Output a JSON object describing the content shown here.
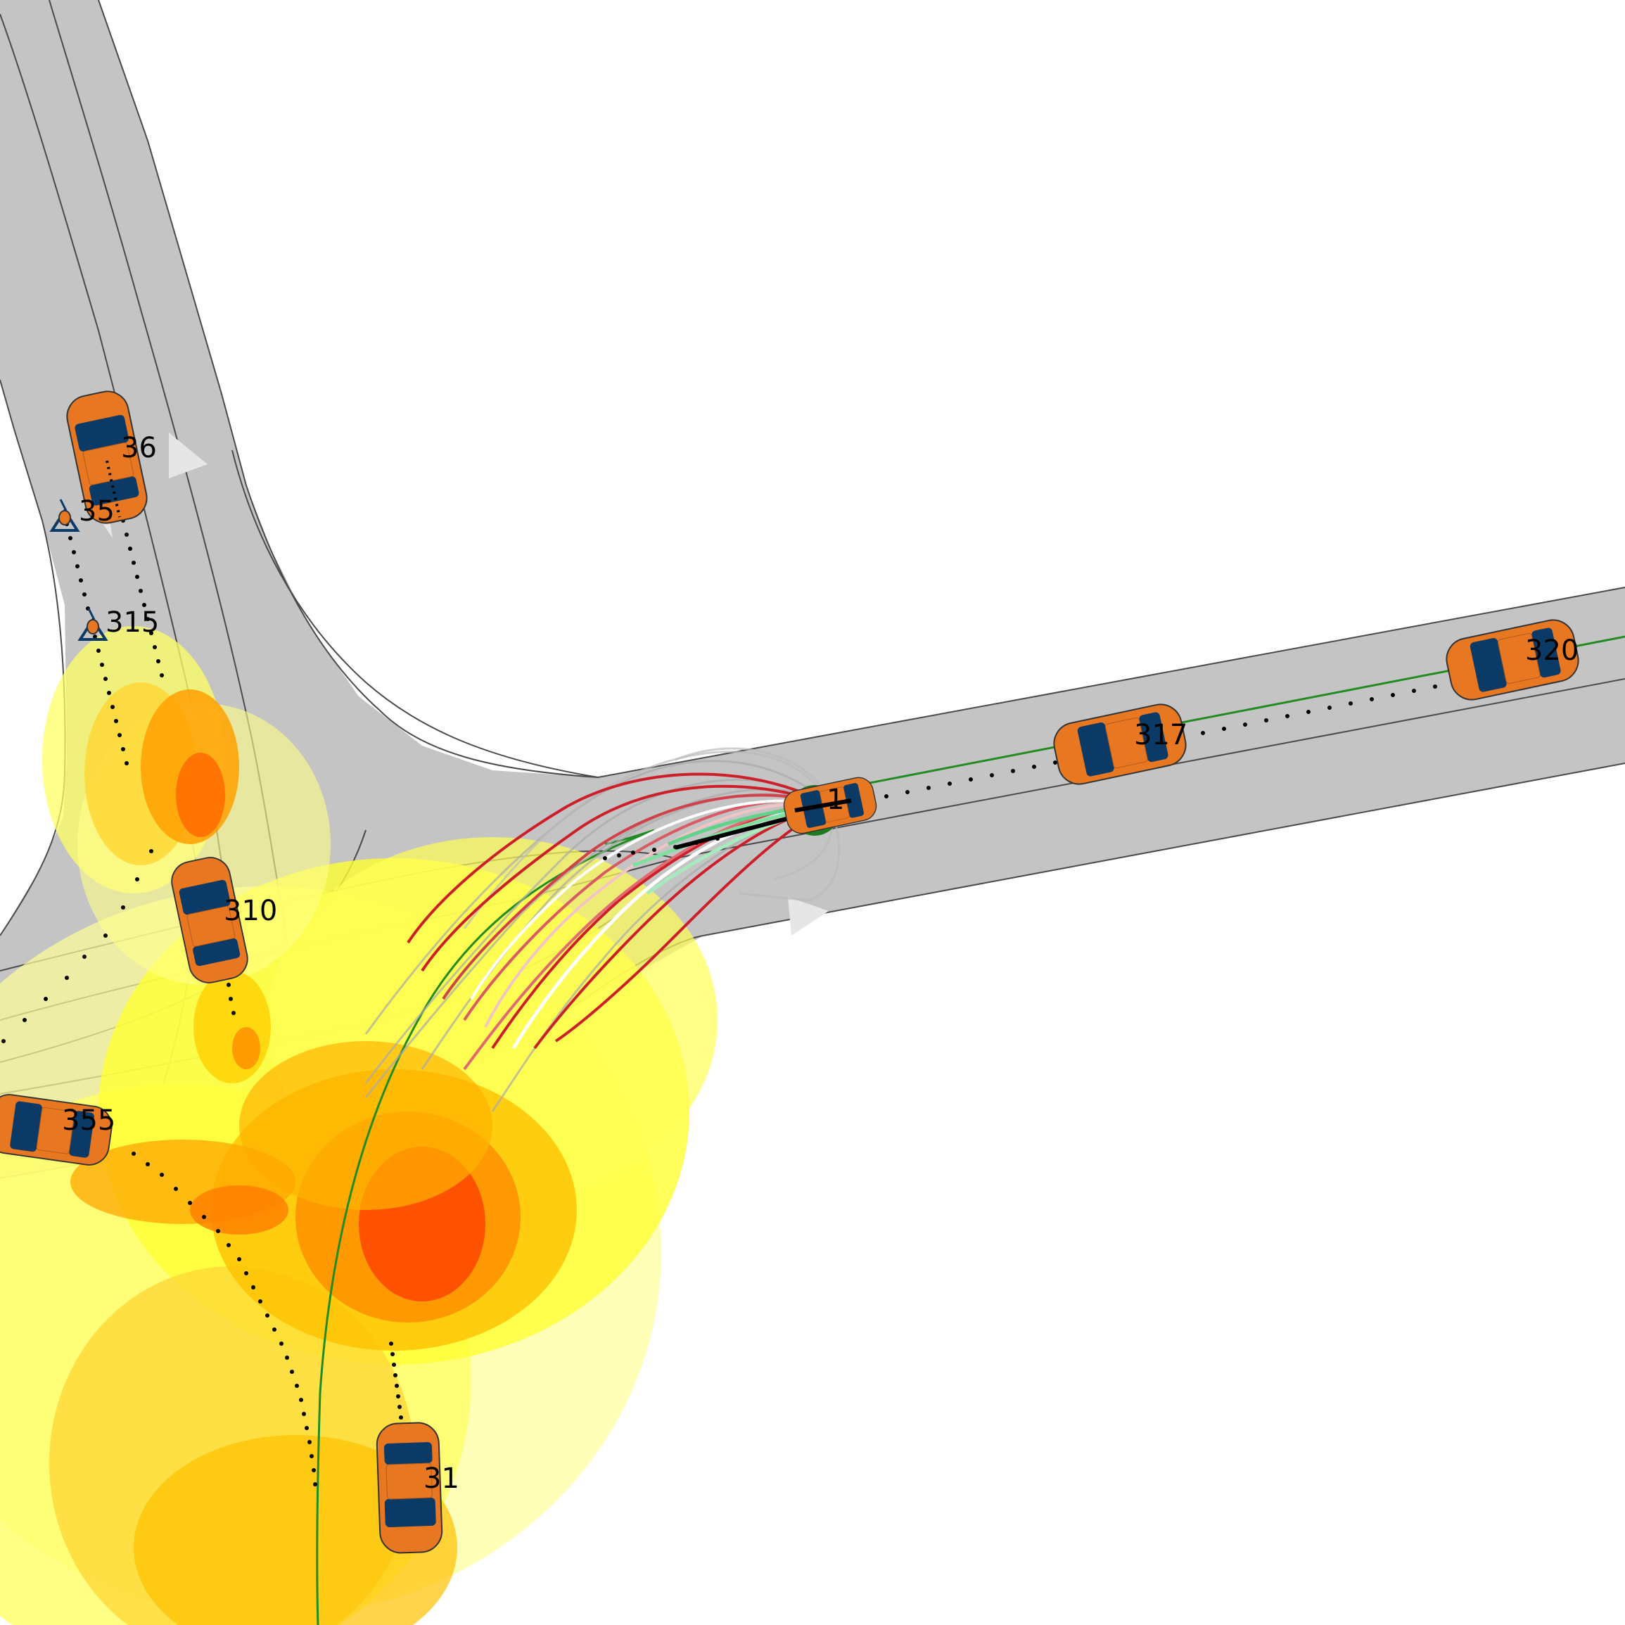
{
  "scene": {
    "colors": {
      "road": "#c4c4c4",
      "road_edge": "#4a4a4a",
      "vehicle_body": "#e87722",
      "vehicle_window": "#0b3a66",
      "risk_low": "#ffff66",
      "risk_mid": "#ffc000",
      "risk_high": "#ff3300",
      "planned_path": "#228b22",
      "candidate_bad": "#cc1f2a",
      "candidate_good": "#7fe0a0",
      "ego_marker": "#1f7a1f"
    },
    "vehicles": [
      {
        "id": "1",
        "label": "1",
        "role": "ego"
      },
      {
        "id": "36",
        "label": "36"
      },
      {
        "id": "35",
        "label": "35"
      },
      {
        "id": "315",
        "label": "315"
      },
      {
        "id": "310",
        "label": "310"
      },
      {
        "id": "355",
        "label": "355"
      },
      {
        "id": "31",
        "label": "31"
      },
      {
        "id": "317",
        "label": "317"
      },
      {
        "id": "320",
        "label": "320"
      }
    ]
  }
}
